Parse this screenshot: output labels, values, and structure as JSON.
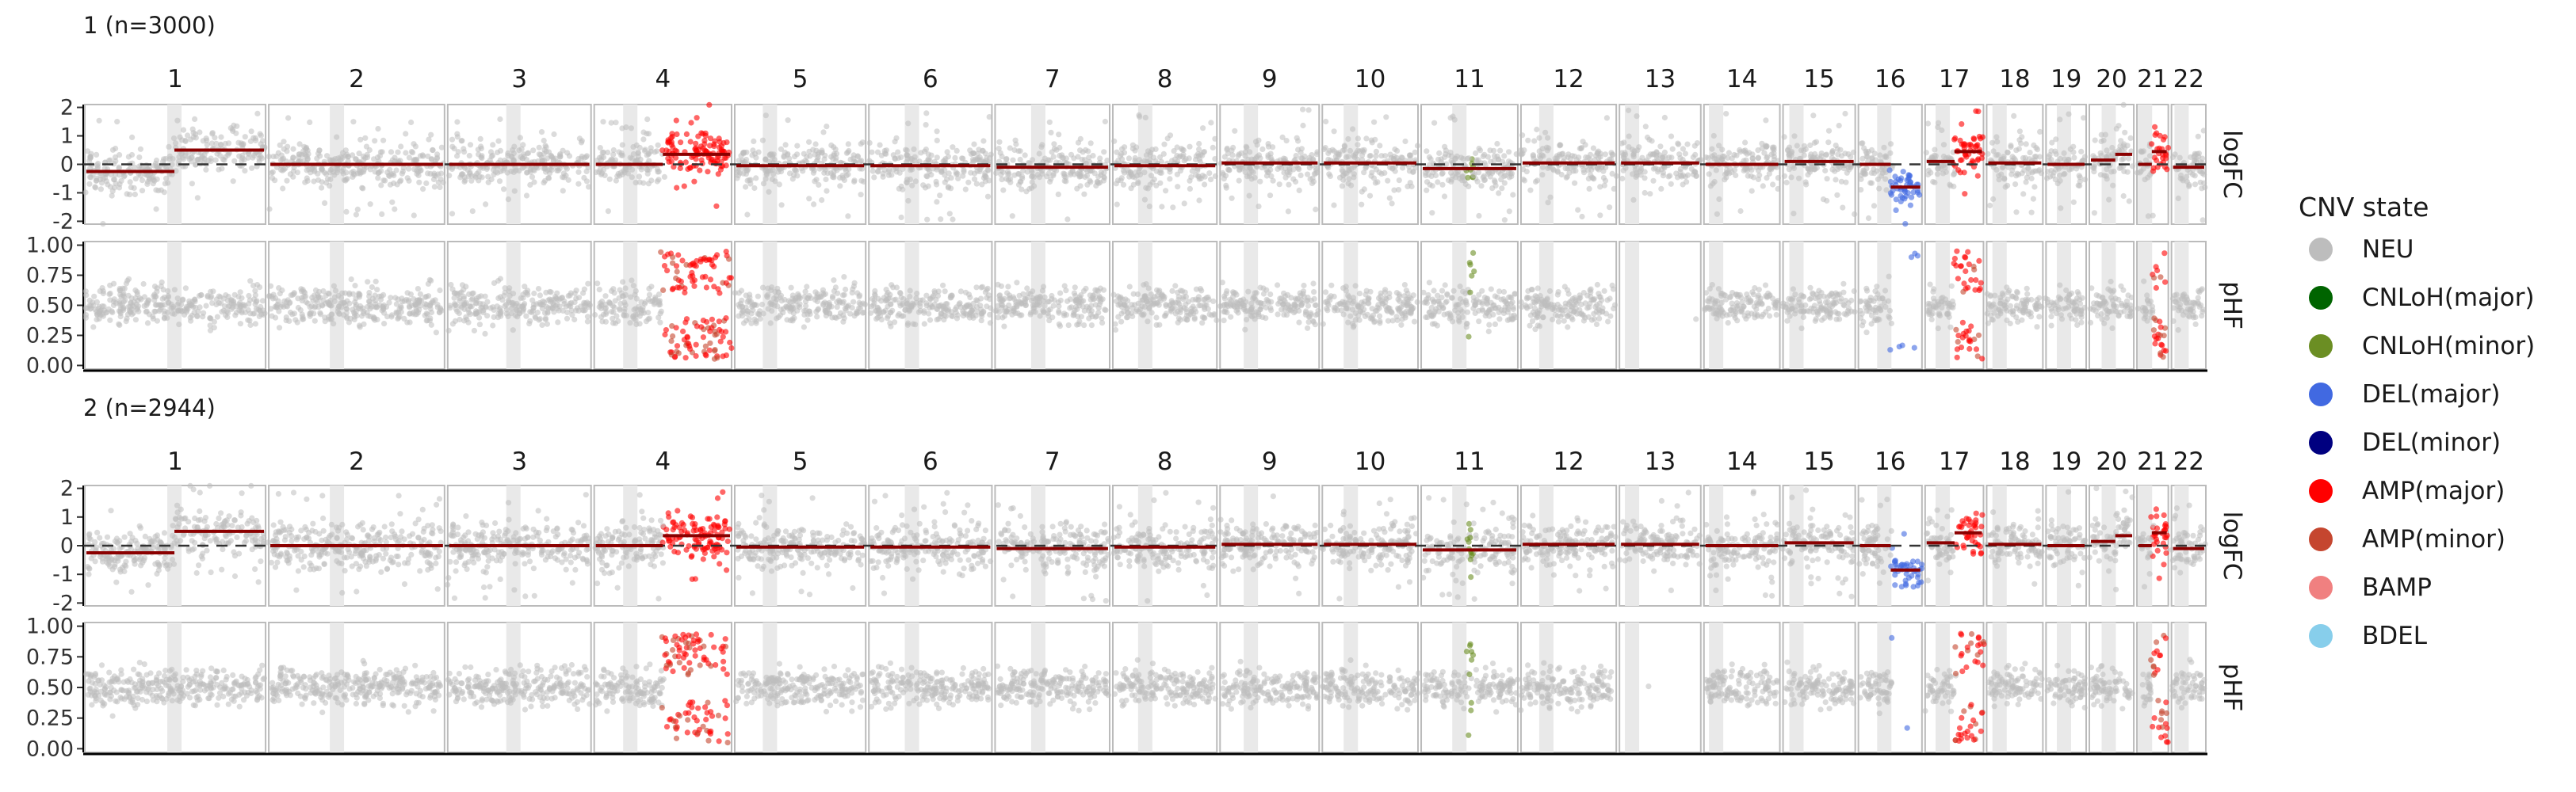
{
  "chart_data": {
    "type": "scatter",
    "chromosomes": [
      "1",
      "2",
      "3",
      "4",
      "5",
      "6",
      "7",
      "8",
      "9",
      "10",
      "11",
      "12",
      "13",
      "14",
      "15",
      "16",
      "17",
      "18",
      "19",
      "20",
      "21",
      "22"
    ],
    "chrom_sizes": [
      248.96,
      242.19,
      198.3,
      190.21,
      181.54,
      170.81,
      159.35,
      145.14,
      138.4,
      133.8,
      135.09,
      133.28,
      114.36,
      107.04,
      101.99,
      90.34,
      83.26,
      80.37,
      58.62,
      64.44,
      46.71,
      50.82
    ],
    "centromeres": [
      123.4,
      93.9,
      90.9,
      50.0,
      48.8,
      59.8,
      60.1,
      45.2,
      43.0,
      39.8,
      53.4,
      35.5,
      17.7,
      17.2,
      19.0,
      36.8,
      25.1,
      18.5,
      26.2,
      28.1,
      12.0,
      15.0
    ],
    "strips": [
      "logFC",
      "pHF"
    ],
    "y_axes": {
      "logFC": {
        "ticks": [
          -2,
          -1,
          0,
          1,
          2
        ],
        "tick_labels": [
          "-2",
          "-1",
          "0",
          "1",
          "2"
        ],
        "ylim": [
          -2.1,
          2.1
        ]
      },
      "pHF": {
        "ticks": [
          0,
          0.25,
          0.5,
          0.75,
          1
        ],
        "tick_labels": [
          "0.00",
          "0.25",
          "0.50",
          "0.75",
          "1.00"
        ],
        "ylim": [
          -0.03,
          1.03
        ]
      }
    },
    "legend": {
      "title": "CNV state",
      "position": "right",
      "entries": [
        {
          "name": "NEU",
          "color": "#bdbdbd"
        },
        {
          "name": "CNLoH(major)",
          "color": "#006400"
        },
        {
          "name": "CNLoH(minor)",
          "color": "#6b8e23"
        },
        {
          "name": "DEL(major)",
          "color": "#4169e1"
        },
        {
          "name": "DEL(minor)",
          "color": "#000080"
        },
        {
          "name": "AMP(major)",
          "color": "#ff0000"
        },
        {
          "name": "AMP(minor)",
          "color": "#c5462f"
        },
        {
          "name": "BAMP",
          "color": "#f08080"
        },
        {
          "name": "BDEL",
          "color": "#87ceeb"
        }
      ]
    },
    "panels": [
      {
        "title": "1 (n=3000)",
        "cnv_regions": [
          {
            "chrom": "4",
            "start": 95,
            "end": 190.2,
            "state": "AMP(major)",
            "logfc": 0.35
          },
          {
            "chrom": "11",
            "start": 66,
            "end": 73,
            "state": "CNLoH(minor)",
            "logfc": 0.0
          },
          {
            "chrom": "16",
            "start": 46,
            "end": 90.3,
            "state": "DEL(major)",
            "logfc": -0.8
          },
          {
            "chrom": "17",
            "start": 42,
            "end": 83.3,
            "state": "AMP(major)",
            "logfc": 0.45
          },
          {
            "chrom": "21",
            "start": 22,
            "end": 46.7,
            "state": "AMP(major)",
            "logfc": 0.45
          }
        ],
        "segments": [
          {
            "chrom": "1",
            "start": 0,
            "end": 123.4,
            "logfc": -0.25
          },
          {
            "chrom": "1",
            "start": 123.4,
            "end": 249,
            "logfc": 0.5
          },
          {
            "chrom": "2",
            "start": 0,
            "end": 242.2,
            "logfc": 0.0
          },
          {
            "chrom": "3",
            "start": 0,
            "end": 198.3,
            "logfc": 0.0
          },
          {
            "chrom": "4",
            "start": 0,
            "end": 95,
            "logfc": 0.0
          },
          {
            "chrom": "4",
            "start": 95,
            "end": 190.2,
            "logfc": 0.35
          },
          {
            "chrom": "5",
            "start": 0,
            "end": 181.5,
            "logfc": -0.05
          },
          {
            "chrom": "6",
            "start": 0,
            "end": 170.8,
            "logfc": -0.05
          },
          {
            "chrom": "7",
            "start": 0,
            "end": 159.3,
            "logfc": -0.1
          },
          {
            "chrom": "8",
            "start": 0,
            "end": 145.1,
            "logfc": -0.05
          },
          {
            "chrom": "9",
            "start": 0,
            "end": 138.4,
            "logfc": 0.05
          },
          {
            "chrom": "10",
            "start": 0,
            "end": 133.8,
            "logfc": 0.05
          },
          {
            "chrom": "11",
            "start": 0,
            "end": 135.1,
            "logfc": -0.15
          },
          {
            "chrom": "12",
            "start": 0,
            "end": 133.3,
            "logfc": 0.05
          },
          {
            "chrom": "13",
            "start": 0,
            "end": 114.4,
            "logfc": 0.05
          },
          {
            "chrom": "14",
            "start": 0,
            "end": 107,
            "logfc": 0.0
          },
          {
            "chrom": "15",
            "start": 0,
            "end": 102,
            "logfc": 0.1
          },
          {
            "chrom": "16",
            "start": 0,
            "end": 46,
            "logfc": 0.0
          },
          {
            "chrom": "16",
            "start": 46,
            "end": 90.3,
            "logfc": -0.8
          },
          {
            "chrom": "17",
            "start": 0,
            "end": 42,
            "logfc": 0.1
          },
          {
            "chrom": "17",
            "start": 42,
            "end": 83.3,
            "logfc": 0.45
          },
          {
            "chrom": "18",
            "start": 0,
            "end": 80.4,
            "logfc": 0.05
          },
          {
            "chrom": "19",
            "start": 0,
            "end": 58.6,
            "logfc": 0.0
          },
          {
            "chrom": "20",
            "start": 0,
            "end": 38,
            "logfc": 0.15
          },
          {
            "chrom": "20",
            "start": 38,
            "end": 64.4,
            "logfc": 0.35
          },
          {
            "chrom": "21",
            "start": 0,
            "end": 22,
            "logfc": 0.0
          },
          {
            "chrom": "21",
            "start": 22,
            "end": 46.7,
            "logfc": 0.45
          },
          {
            "chrom": "22",
            "start": 0,
            "end": 50.8,
            "logfc": -0.1
          }
        ]
      },
      {
        "title": "2 (n=2944)",
        "cnv_regions": [
          {
            "chrom": "4",
            "start": 95,
            "end": 190.2,
            "state": "AMP(major)",
            "logfc": 0.35
          },
          {
            "chrom": "11",
            "start": 66,
            "end": 73,
            "state": "CNLoH(minor)",
            "logfc": 0.0
          },
          {
            "chrom": "16",
            "start": 46,
            "end": 90.3,
            "state": "DEL(major)",
            "logfc": -0.85
          },
          {
            "chrom": "17",
            "start": 42,
            "end": 83.3,
            "state": "AMP(major)",
            "logfc": 0.45
          },
          {
            "chrom": "21",
            "start": 22,
            "end": 46.7,
            "state": "AMP(major)",
            "logfc": 0.45
          }
        ],
        "segments": [
          {
            "chrom": "1",
            "start": 0,
            "end": 123.4,
            "logfc": -0.25
          },
          {
            "chrom": "1",
            "start": 123.4,
            "end": 249,
            "logfc": 0.5
          },
          {
            "chrom": "2",
            "start": 0,
            "end": 242.2,
            "logfc": 0.0
          },
          {
            "chrom": "3",
            "start": 0,
            "end": 198.3,
            "logfc": 0.0
          },
          {
            "chrom": "4",
            "start": 0,
            "end": 95,
            "logfc": 0.0
          },
          {
            "chrom": "4",
            "start": 95,
            "end": 190.2,
            "logfc": 0.35
          },
          {
            "chrom": "5",
            "start": 0,
            "end": 181.5,
            "logfc": -0.05
          },
          {
            "chrom": "6",
            "start": 0,
            "end": 170.8,
            "logfc": -0.05
          },
          {
            "chrom": "7",
            "start": 0,
            "end": 159.3,
            "logfc": -0.1
          },
          {
            "chrom": "8",
            "start": 0,
            "end": 145.1,
            "logfc": -0.05
          },
          {
            "chrom": "9",
            "start": 0,
            "end": 138.4,
            "logfc": 0.05
          },
          {
            "chrom": "10",
            "start": 0,
            "end": 133.8,
            "logfc": 0.05
          },
          {
            "chrom": "11",
            "start": 0,
            "end": 135.1,
            "logfc": -0.15
          },
          {
            "chrom": "12",
            "start": 0,
            "end": 133.3,
            "logfc": 0.05
          },
          {
            "chrom": "13",
            "start": 0,
            "end": 114.4,
            "logfc": 0.05
          },
          {
            "chrom": "14",
            "start": 0,
            "end": 107,
            "logfc": 0.0
          },
          {
            "chrom": "15",
            "start": 0,
            "end": 102,
            "logfc": 0.1
          },
          {
            "chrom": "16",
            "start": 0,
            "end": 46,
            "logfc": 0.0
          },
          {
            "chrom": "16",
            "start": 46,
            "end": 90.3,
            "logfc": -0.85
          },
          {
            "chrom": "17",
            "start": 0,
            "end": 42,
            "logfc": 0.1
          },
          {
            "chrom": "17",
            "start": 42,
            "end": 83.3,
            "logfc": 0.45
          },
          {
            "chrom": "18",
            "start": 0,
            "end": 80.4,
            "logfc": 0.05
          },
          {
            "chrom": "19",
            "start": 0,
            "end": 58.6,
            "logfc": 0.0
          },
          {
            "chrom": "20",
            "start": 0,
            "end": 38,
            "logfc": 0.15
          },
          {
            "chrom": "20",
            "start": 38,
            "end": 64.4,
            "logfc": 0.35
          },
          {
            "chrom": "21",
            "start": 0,
            "end": 22,
            "logfc": 0.0
          },
          {
            "chrom": "21",
            "start": 22,
            "end": 46.7,
            "logfc": 0.45
          },
          {
            "chrom": "22",
            "start": 0,
            "end": 50.8,
            "logfc": -0.1
          }
        ]
      }
    ],
    "colors": {
      "segment": "#8b0000",
      "baseline": "#333333",
      "panel_border": "#bbbbbb",
      "centromere_band": "#e9e9e9",
      "axis": "#000000"
    }
  }
}
